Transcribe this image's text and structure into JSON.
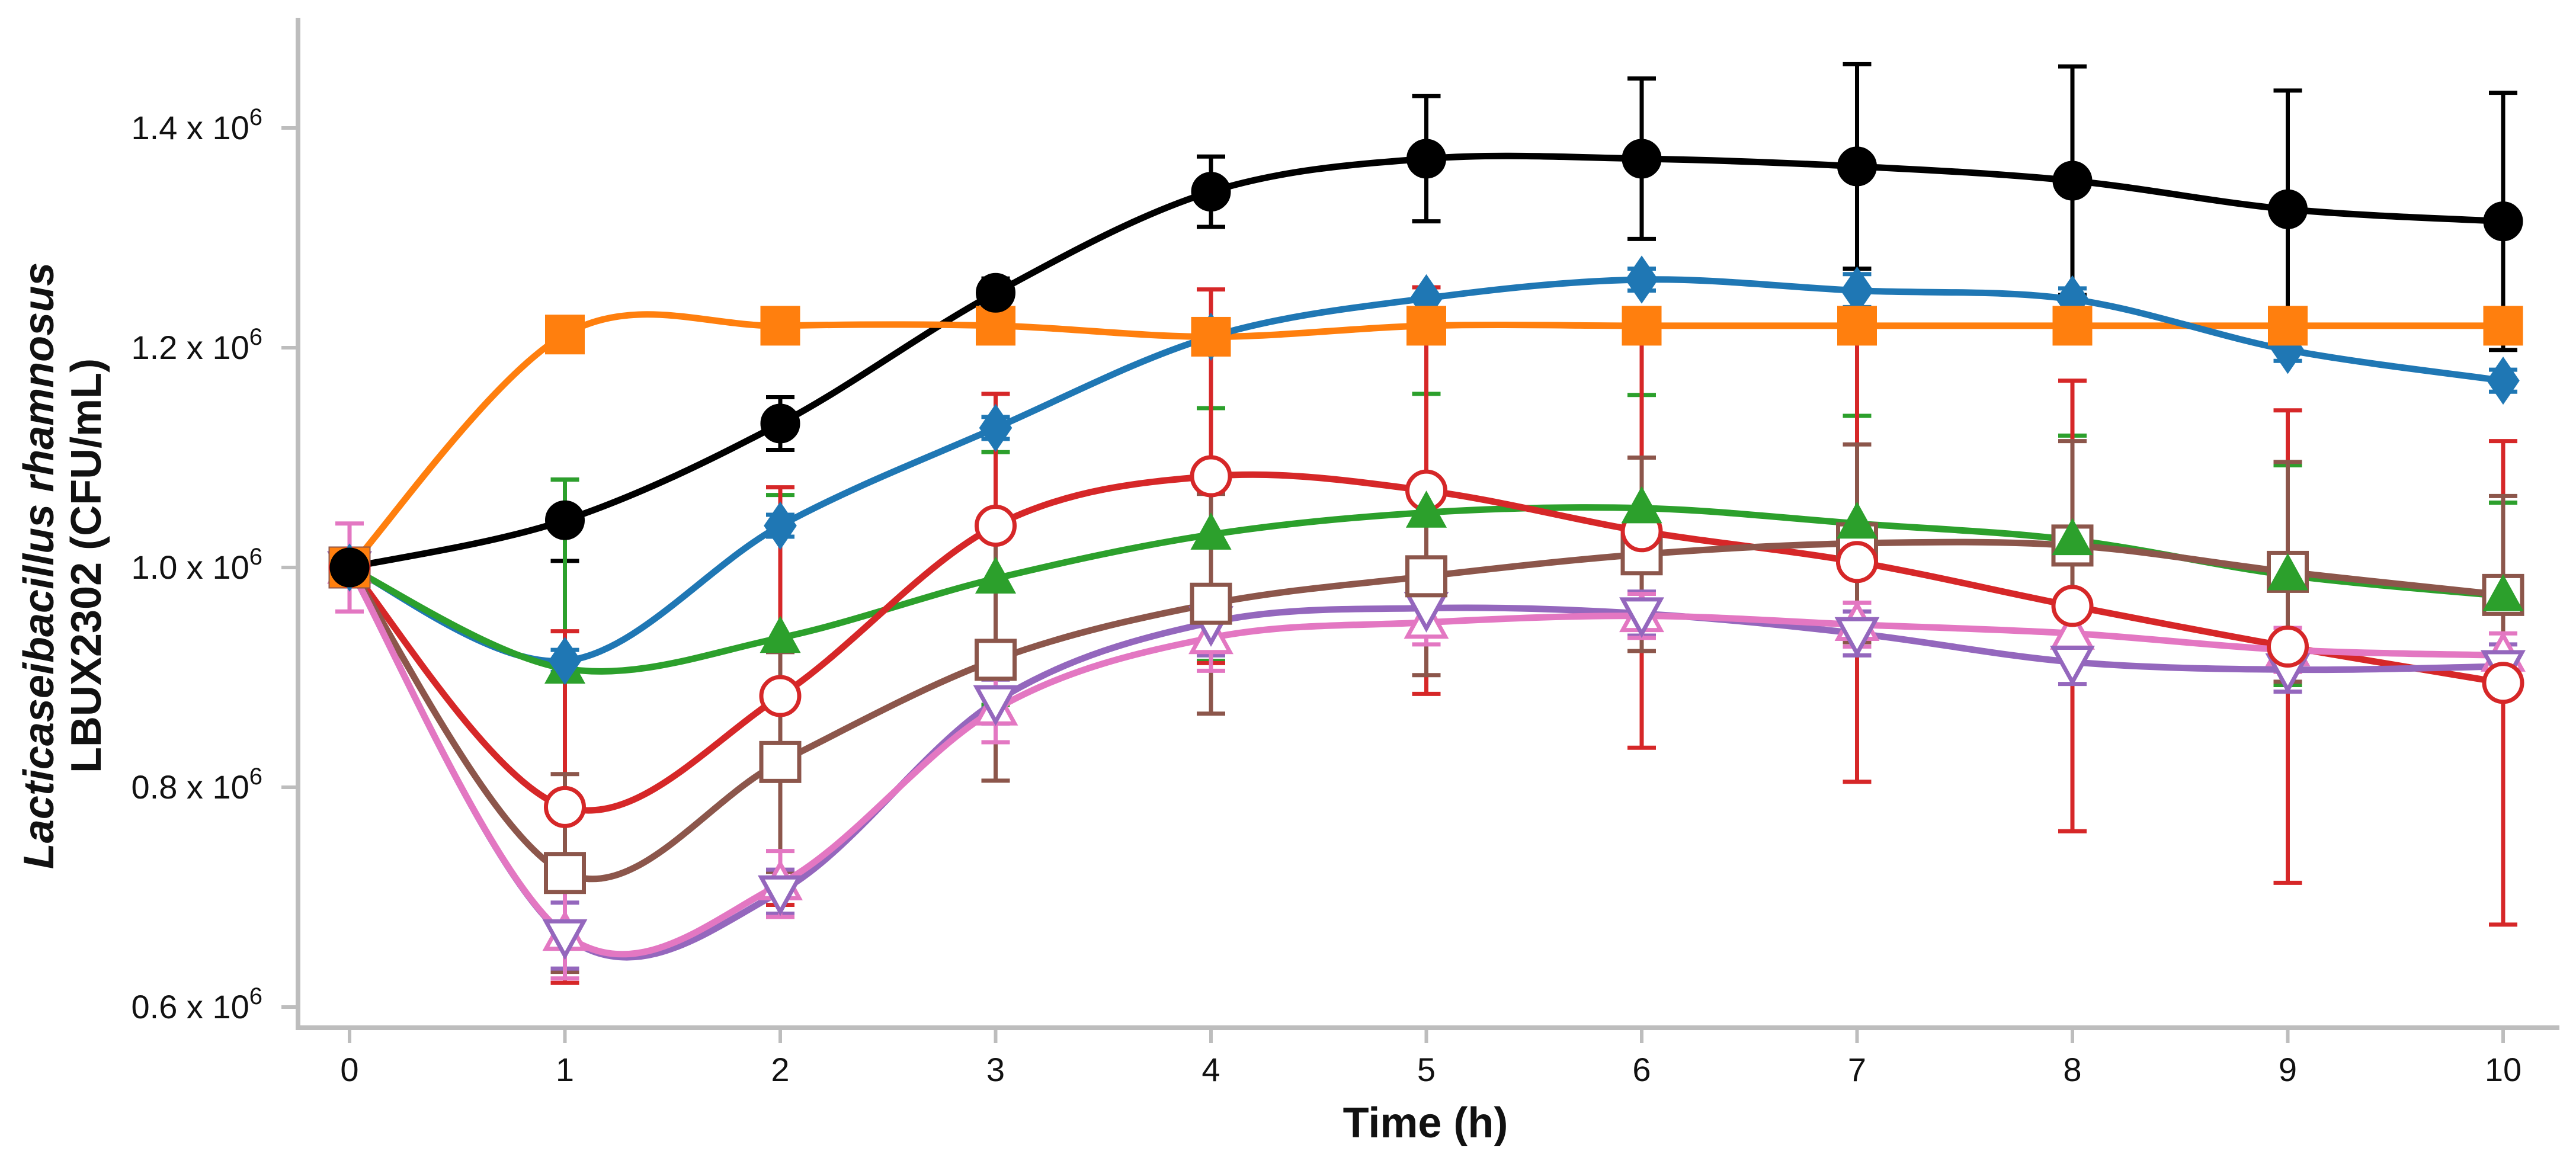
{
  "chart_data": {
    "type": "line",
    "title": "",
    "xlabel": "Time (h)",
    "ylabel_line1": "Lacticaseibacillus rhamnosus",
    "ylabel_line2": "LBUX2302  (CFU/mL)",
    "x": [
      0,
      1,
      2,
      3,
      4,
      5,
      6,
      7,
      8,
      9,
      10
    ],
    "xlim": [
      0,
      10
    ],
    "ylim": [
      0.6,
      1.5
    ],
    "y_unit_exponent": "6",
    "y_ticks": [
      {
        "value": 0.6,
        "label": "0.6 x 10"
      },
      {
        "value": 0.8,
        "label": "0.8 x 10"
      },
      {
        "value": 1.0,
        "label": "1.0 x 10"
      },
      {
        "value": 1.2,
        "label": "1.2 x 10"
      },
      {
        "value": 1.4,
        "label": "1.4 x 10"
      }
    ],
    "x_ticks": [
      "0",
      "1",
      "2",
      "3",
      "4",
      "5",
      "6",
      "7",
      "8",
      "9",
      "10"
    ],
    "grid": false,
    "legend": "none",
    "series": [
      {
        "name": "black",
        "color": "#000000",
        "marker": "circle",
        "filled": true,
        "values": [
          1.0,
          1.043,
          1.131,
          1.25,
          1.342,
          1.372,
          1.372,
          1.365,
          1.352,
          1.326,
          1.315
        ],
        "errors": [
          0,
          0.037,
          0.024,
          0.013,
          0.032,
          0.057,
          0.073,
          0.093,
          0.104,
          0.108,
          0.117
        ]
      },
      {
        "name": "orange",
        "color": "#ff7f0e",
        "marker": "square",
        "filled": true,
        "values": [
          1.0,
          1.212,
          1.22,
          1.22,
          1.21,
          1.22,
          1.22,
          1.22,
          1.22,
          1.22,
          1.22
        ],
        "errors": [
          0,
          0,
          0,
          0,
          0,
          0,
          0,
          0,
          0,
          0,
          0
        ]
      },
      {
        "name": "blue",
        "color": "#1f77b4",
        "marker": "diamond",
        "filled": true,
        "values": [
          1.0,
          0.915,
          1.038,
          1.127,
          1.21,
          1.245,
          1.262,
          1.252,
          1.244,
          1.198,
          1.17
        ],
        "errors": [
          0,
          0.01,
          0.01,
          0.01,
          0.01,
          0.01,
          0.01,
          0.015,
          0.01,
          0.01,
          0.01
        ]
      },
      {
        "name": "green",
        "color": "#2ca02c",
        "marker": "triangle-up",
        "filled": true,
        "values": [
          1.0,
          0.908,
          0.936,
          0.99,
          1.03,
          1.05,
          1.054,
          1.04,
          1.025,
          0.993,
          0.974
        ],
        "errors": [
          0,
          0.172,
          0.13,
          0.115,
          0.115,
          0.108,
          0.103,
          0.098,
          0.095,
          0.1,
          0.085
        ]
      },
      {
        "name": "red",
        "color": "#d62728",
        "marker": "circle",
        "filled": false,
        "values": [
          1.0,
          0.782,
          0.883,
          1.038,
          1.083,
          1.07,
          1.033,
          1.005,
          0.965,
          0.928,
          0.895
        ],
        "errors": [
          0,
          0.16,
          0.19,
          0.12,
          0.17,
          0.185,
          0.197,
          0.2,
          0.205,
          0.215,
          0.22
        ]
      },
      {
        "name": "brown",
        "color": "#8c564b",
        "marker": "square",
        "filled": false,
        "values": [
          1.0,
          0.722,
          0.823,
          0.916,
          0.967,
          0.992,
          1.012,
          1.022,
          1.02,
          0.996,
          0.975
        ],
        "errors": [
          0,
          0.09,
          0.1,
          0.11,
          0.1,
          0.09,
          0.088,
          0.09,
          0.095,
          0.1,
          0.09
        ]
      },
      {
        "name": "purple",
        "color": "#9467bd",
        "marker": "triangle-down",
        "filled": false,
        "values": [
          1.0,
          0.665,
          0.705,
          0.878,
          0.95,
          0.963,
          0.958,
          0.94,
          0.914,
          0.907,
          0.91
        ],
        "errors": [
          0,
          0.03,
          0.02,
          0.02,
          0.03,
          0.02,
          0.02,
          0.02,
          0.02,
          0.02,
          0.02
        ]
      },
      {
        "name": "pink",
        "color": "#e377c2",
        "marker": "triangle-up",
        "filled": false,
        "values": [
          1.0,
          0.666,
          0.712,
          0.871,
          0.936,
          0.95,
          0.956,
          0.948,
          0.94,
          0.925,
          0.92
        ],
        "errors": [
          0.04,
          0.04,
          0.03,
          0.03,
          0.03,
          0.02,
          0.02,
          0.02,
          0.02,
          0.02,
          0.02
        ]
      }
    ]
  }
}
